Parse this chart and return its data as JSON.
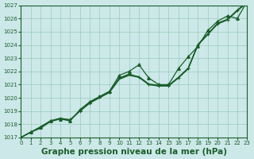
{
  "background_color": "#cce8e8",
  "grid_color": "#99ccbb",
  "line_color": "#1a5e2a",
  "xlabel": "Graphe pression niveau de la mer (hPa)",
  "xlabel_fontsize": 7.5,
  "ylim": [
    1017,
    1027
  ],
  "xlim": [
    0,
    23
  ],
  "yticks": [
    1017,
    1018,
    1019,
    1020,
    1021,
    1022,
    1023,
    1024,
    1025,
    1026,
    1027
  ],
  "xticks": [
    0,
    1,
    2,
    3,
    4,
    5,
    6,
    7,
    8,
    9,
    10,
    11,
    12,
    13,
    14,
    15,
    16,
    17,
    18,
    19,
    20,
    21,
    22,
    23
  ],
  "series_straight1": [
    1017.0,
    1017.4,
    1017.7,
    1018.2,
    1018.4,
    1018.3,
    1019.0,
    1019.6,
    1020.0,
    1020.4,
    1021.4,
    1021.7,
    1021.55,
    1021.0,
    1020.9,
    1020.9,
    1021.5,
    1022.2,
    1024.0,
    1024.8,
    1025.6,
    1025.9,
    1026.6,
    1027.2
  ],
  "series_straight2": [
    1017.0,
    1017.4,
    1017.8,
    1018.25,
    1018.45,
    1018.3,
    1019.05,
    1019.65,
    1020.05,
    1020.45,
    1021.45,
    1021.75,
    1021.6,
    1021.05,
    1020.95,
    1020.95,
    1021.55,
    1022.25,
    1024.05,
    1024.85,
    1025.65,
    1025.95,
    1026.65,
    1027.25
  ],
  "series_markers_plus": [
    1017.0,
    1017.4,
    1017.75,
    1018.25,
    1018.45,
    1018.35,
    1019.0,
    1019.6,
    1020.05,
    1020.45,
    1021.5,
    1021.8,
    1021.55,
    1021.0,
    1020.9,
    1020.9,
    1021.5,
    1022.2,
    1024.0,
    1024.8,
    1025.6,
    1025.9,
    1026.6,
    1027.2
  ],
  "series_diverge": [
    1017.0,
    1017.4,
    1017.8,
    1018.25,
    1018.4,
    1018.25,
    1019.1,
    1019.7,
    1020.1,
    1020.5,
    1021.7,
    1022.0,
    1022.5,
    1021.5,
    1021.0,
    1021.0,
    1022.2,
    1023.1,
    1023.9,
    1025.1,
    1025.8,
    1026.2,
    1026.0,
    1027.3
  ]
}
